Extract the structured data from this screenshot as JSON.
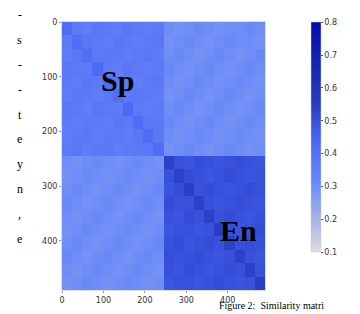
{
  "chart_data": {
    "type": "heatmap",
    "x": [
      0,
      24.5,
      49,
      73.5,
      98,
      122.5,
      147,
      171.5,
      196,
      220.5,
      245,
      269.5,
      294,
      318.5,
      343,
      367.5,
      392,
      416.5,
      441,
      465.5,
      490
    ],
    "y": [
      0,
      24.5,
      49,
      73.5,
      98,
      122.5,
      147,
      171.5,
      196,
      220.5,
      245,
      269.5,
      294,
      318.5,
      343,
      367.5,
      392,
      416.5,
      441,
      465.5,
      490
    ],
    "cells": [
      [
        0.42,
        0.37,
        0.36,
        0.38,
        0.37,
        0.36,
        0.38,
        0.37,
        0.36,
        0.37,
        0.3,
        0.29,
        0.3,
        0.31,
        0.3,
        0.29,
        0.3,
        0.3,
        0.31,
        0.3
      ],
      [
        0.37,
        0.42,
        0.38,
        0.37,
        0.36,
        0.38,
        0.37,
        0.36,
        0.37,
        0.38,
        0.29,
        0.3,
        0.31,
        0.3,
        0.29,
        0.3,
        0.31,
        0.3,
        0.3,
        0.29
      ],
      [
        0.36,
        0.38,
        0.42,
        0.37,
        0.38,
        0.37,
        0.36,
        0.37,
        0.38,
        0.36,
        0.3,
        0.31,
        0.3,
        0.29,
        0.3,
        0.31,
        0.3,
        0.29,
        0.3,
        0.31
      ],
      [
        0.38,
        0.37,
        0.37,
        0.43,
        0.37,
        0.36,
        0.38,
        0.37,
        0.36,
        0.37,
        0.31,
        0.3,
        0.29,
        0.3,
        0.31,
        0.3,
        0.29,
        0.3,
        0.31,
        0.3
      ],
      [
        0.37,
        0.36,
        0.38,
        0.37,
        0.42,
        0.38,
        0.37,
        0.36,
        0.37,
        0.38,
        0.3,
        0.29,
        0.3,
        0.31,
        0.3,
        0.29,
        0.3,
        0.31,
        0.3,
        0.29
      ],
      [
        0.36,
        0.38,
        0.37,
        0.36,
        0.38,
        0.42,
        0.37,
        0.38,
        0.37,
        0.36,
        0.29,
        0.3,
        0.31,
        0.3,
        0.29,
        0.3,
        0.31,
        0.3,
        0.29,
        0.3
      ],
      [
        0.38,
        0.37,
        0.36,
        0.38,
        0.37,
        0.37,
        0.43,
        0.37,
        0.36,
        0.37,
        0.3,
        0.31,
        0.3,
        0.29,
        0.3,
        0.31,
        0.3,
        0.29,
        0.3,
        0.31
      ],
      [
        0.37,
        0.36,
        0.37,
        0.37,
        0.36,
        0.38,
        0.37,
        0.42,
        0.38,
        0.37,
        0.31,
        0.3,
        0.29,
        0.3,
        0.31,
        0.3,
        0.29,
        0.3,
        0.31,
        0.3
      ],
      [
        0.36,
        0.37,
        0.38,
        0.36,
        0.37,
        0.37,
        0.36,
        0.38,
        0.42,
        0.38,
        0.3,
        0.29,
        0.3,
        0.31,
        0.3,
        0.29,
        0.3,
        0.31,
        0.3,
        0.29
      ],
      [
        0.37,
        0.38,
        0.36,
        0.37,
        0.38,
        0.36,
        0.37,
        0.37,
        0.38,
        0.42,
        0.29,
        0.3,
        0.31,
        0.3,
        0.29,
        0.3,
        0.31,
        0.3,
        0.29,
        0.3
      ],
      [
        0.3,
        0.29,
        0.3,
        0.31,
        0.3,
        0.29,
        0.3,
        0.31,
        0.3,
        0.29,
        0.54,
        0.5,
        0.49,
        0.51,
        0.5,
        0.49,
        0.5,
        0.51,
        0.5,
        0.49
      ],
      [
        0.29,
        0.3,
        0.31,
        0.3,
        0.29,
        0.3,
        0.31,
        0.3,
        0.29,
        0.3,
        0.5,
        0.54,
        0.51,
        0.5,
        0.49,
        0.5,
        0.51,
        0.5,
        0.49,
        0.5
      ],
      [
        0.3,
        0.31,
        0.3,
        0.29,
        0.3,
        0.31,
        0.3,
        0.29,
        0.3,
        0.31,
        0.49,
        0.51,
        0.55,
        0.5,
        0.51,
        0.5,
        0.49,
        0.5,
        0.51,
        0.5
      ],
      [
        0.31,
        0.3,
        0.29,
        0.3,
        0.31,
        0.3,
        0.29,
        0.3,
        0.31,
        0.3,
        0.51,
        0.5,
        0.5,
        0.54,
        0.5,
        0.49,
        0.5,
        0.51,
        0.5,
        0.49
      ],
      [
        0.3,
        0.29,
        0.3,
        0.31,
        0.3,
        0.29,
        0.3,
        0.31,
        0.3,
        0.29,
        0.5,
        0.49,
        0.51,
        0.5,
        0.54,
        0.5,
        0.51,
        0.5,
        0.49,
        0.5
      ],
      [
        0.29,
        0.3,
        0.31,
        0.3,
        0.29,
        0.3,
        0.31,
        0.3,
        0.29,
        0.3,
        0.49,
        0.5,
        0.5,
        0.49,
        0.5,
        0.55,
        0.5,
        0.49,
        0.5,
        0.51
      ],
      [
        0.3,
        0.31,
        0.3,
        0.29,
        0.3,
        0.31,
        0.3,
        0.29,
        0.3,
        0.31,
        0.5,
        0.51,
        0.49,
        0.5,
        0.51,
        0.5,
        0.54,
        0.5,
        0.51,
        0.5
      ],
      [
        0.31,
        0.3,
        0.29,
        0.3,
        0.31,
        0.3,
        0.29,
        0.3,
        0.31,
        0.3,
        0.51,
        0.5,
        0.5,
        0.51,
        0.5,
        0.49,
        0.5,
        0.54,
        0.5,
        0.49
      ],
      [
        0.3,
        0.29,
        0.3,
        0.31,
        0.3,
        0.29,
        0.3,
        0.31,
        0.3,
        0.29,
        0.5,
        0.49,
        0.51,
        0.5,
        0.49,
        0.5,
        0.51,
        0.5,
        0.54,
        0.5
      ],
      [
        0.29,
        0.3,
        0.31,
        0.3,
        0.29,
        0.3,
        0.31,
        0.3,
        0.29,
        0.3,
        0.49,
        0.5,
        0.5,
        0.49,
        0.5,
        0.51,
        0.5,
        0.49,
        0.5,
        0.55
      ]
    ],
    "xlim": [
      0,
      490
    ],
    "ylim": [
      490,
      0
    ],
    "xticks": [
      0,
      100,
      200,
      300,
      400
    ],
    "yticks": [
      0,
      100,
      200,
      300,
      400
    ],
    "colorbar_range": [
      0.1,
      0.8
    ],
    "colorbar_ticks": [
      0.1,
      0.2,
      0.3,
      0.4,
      0.5,
      0.6,
      0.7,
      0.8
    ],
    "annotations": [
      {
        "text": "Sp",
        "x": 133,
        "y": 107
      },
      {
        "text": "En",
        "x": 427,
        "y": 382
      }
    ],
    "caption": "Figure 2:  Similarity matri",
    "side_text": [
      "-",
      "s",
      "-",
      "-",
      "t",
      "e",
      "y",
      "n",
      ",",
      "e"
    ]
  }
}
